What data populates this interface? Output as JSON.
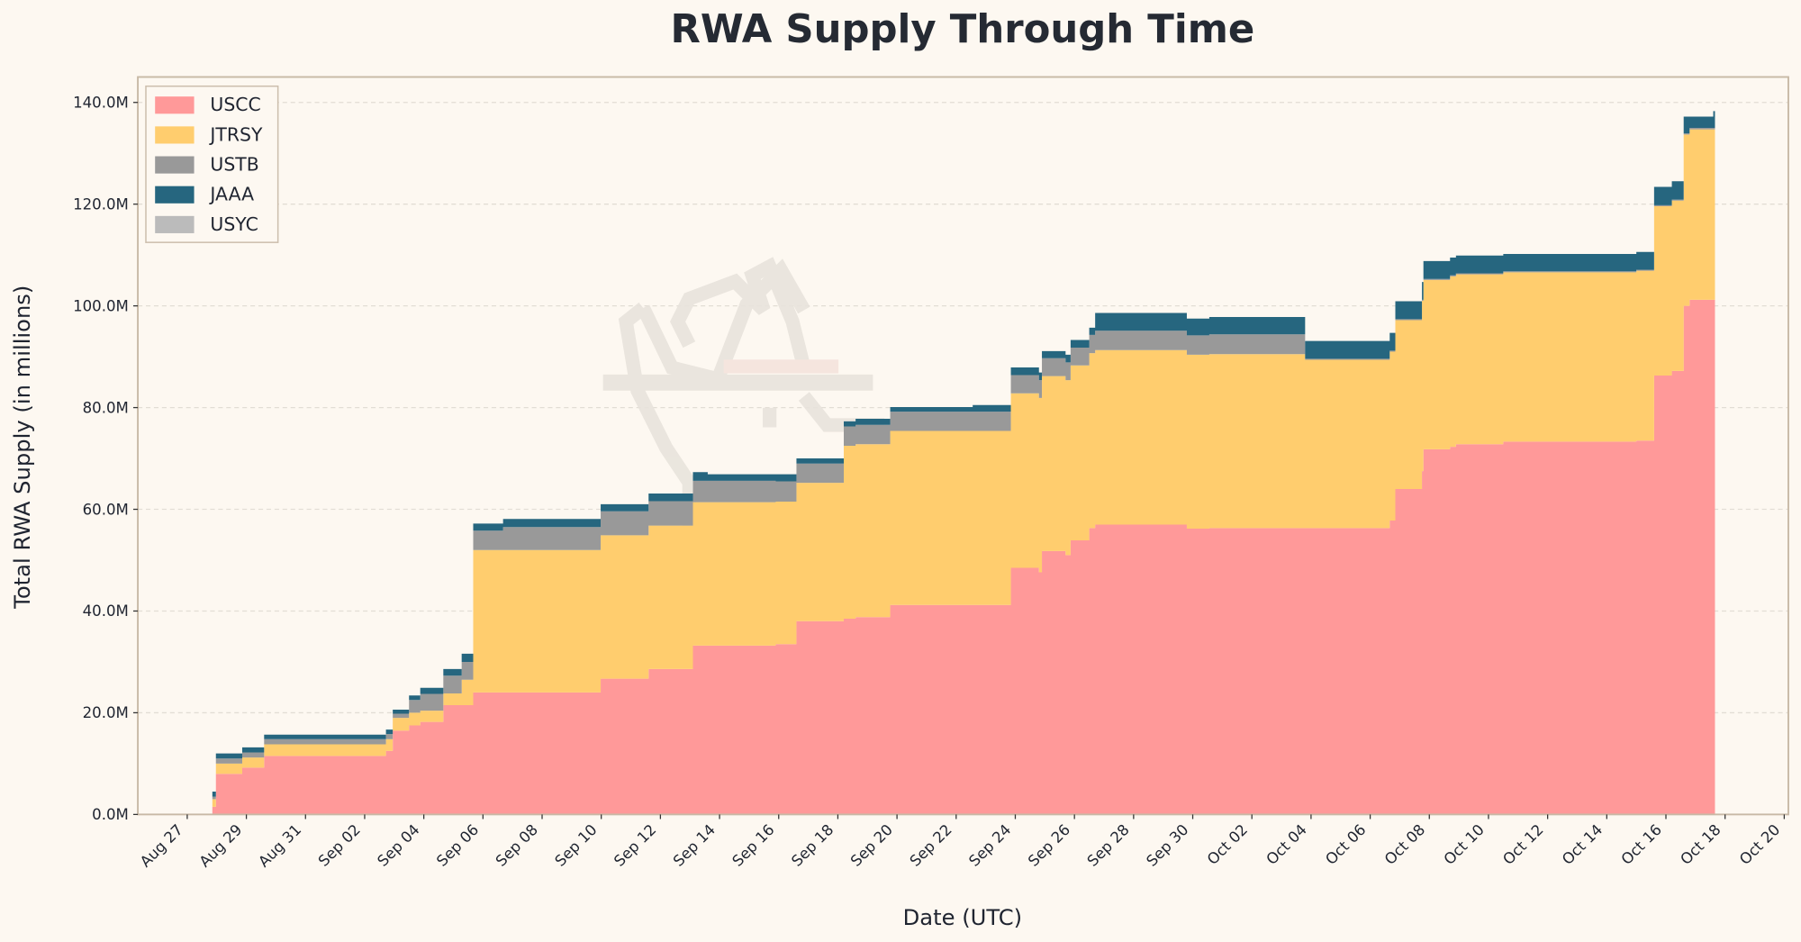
{
  "chart_data": {
    "type": "area",
    "stacked": true,
    "step": "post",
    "title": "RWA Supply Through Time",
    "xlabel": "Date (UTC)",
    "ylabel": "Total RWA Supply (in millions)",
    "x_origin_date": "Aug 27",
    "x_units": "days since Aug 27",
    "xlim": [
      -1.67,
      54.14
    ],
    "ylim": [
      0,
      145
    ],
    "grid": "horizontal dashed",
    "legend_position": "top-left",
    "xticks": [
      "Aug 27",
      "Aug 29",
      "Aug 31",
      "Sep 02",
      "Sep 04",
      "Sep 06",
      "Sep 08",
      "Sep 10",
      "Sep 12",
      "Sep 14",
      "Sep 16",
      "Sep 18",
      "Sep 20",
      "Sep 22",
      "Sep 24",
      "Sep 26",
      "Sep 28",
      "Sep 30",
      "Oct 02",
      "Oct 04",
      "Oct 06",
      "Oct 08",
      "Oct 10",
      "Oct 12",
      "Oct 14",
      "Oct 16",
      "Oct 18",
      "Oct 20"
    ],
    "yticks": [
      0,
      20,
      40,
      60,
      80,
      100,
      120,
      140
    ],
    "ytick_labels": [
      "0.0M",
      "20.0M",
      "40.0M",
      "60.0M",
      "80.0M",
      "100.0M",
      "120.0M",
      "140.0M"
    ],
    "x": [
      0.85,
      0.97,
      1.86,
      2.6,
      6.72,
      6.95,
      7.5,
      7.88,
      8.66,
      9.28,
      9.67,
      10.68,
      13.98,
      15.6,
      17.1,
      17.6,
      19.9,
      20.6,
      22.2,
      22.6,
      23.77,
      26.56,
      27.85,
      28.8,
      28.9,
      29.7,
      29.87,
      30.5,
      30.7,
      33.8,
      34.56,
      37.8,
      40.66,
      40.85,
      41.75,
      41.8,
      42.7,
      42.9,
      44.5,
      49.0,
      49.6,
      50.2,
      50.6,
      50.8,
      51.6
    ],
    "series": [
      {
        "name": "USCC",
        "color": "#ff9999",
        "values": [
          1.5,
          8,
          9.2,
          11.5,
          12.5,
          16.5,
          17.5,
          18.2,
          21.5,
          21.5,
          24,
          24,
          26.7,
          28.6,
          33.2,
          33.2,
          33.5,
          38,
          38.5,
          38.8,
          41.2,
          41.2,
          48.5,
          47.6,
          51.8,
          51.0,
          53.9,
          56.3,
          57,
          56.2,
          56.3,
          56.3,
          57.8,
          64,
          67.5,
          71.8,
          72.3,
          72.8,
          73.3,
          73.5,
          86.3,
          87.2,
          100,
          101.2,
          101.2
        ]
      },
      {
        "name": "JTRSY",
        "color": "#ffcd6e",
        "values": [
          1.5,
          2,
          2,
          2.3,
          2.3,
          2.5,
          2.5,
          2.2,
          2.3,
          5,
          28,
          28,
          28.2,
          28.2,
          28.2,
          28.2,
          28,
          27.2,
          34,
          34,
          34.2,
          34.2,
          34.3,
          34.3,
          34.4,
          34.4,
          34.4,
          34.4,
          34.3,
          34.2,
          34.2,
          33.1,
          33.2,
          33.2,
          33.5,
          33.3,
          33.5,
          33.4,
          33.3,
          33.4,
          33.3,
          33.5,
          33.7,
          33.5,
          33.5
        ]
      },
      {
        "name": "USTB",
        "color": "#999999",
        "values": [
          0.5,
          1,
          1,
          1,
          1,
          0.8,
          2.5,
          3.3,
          3.5,
          3.5,
          3.8,
          4.5,
          4.7,
          4.8,
          4.2,
          4.2,
          4,
          3.8,
          3.8,
          3.8,
          3.8,
          3.8,
          3.6,
          3.5,
          3.5,
          3.5,
          3.5,
          3.6,
          3.8,
          3.8,
          3.9,
          0.2,
          0.2,
          0.2,
          0.2,
          0.2,
          0.2,
          0.2,
          0.2,
          0.2,
          0.2,
          0.2,
          0.2,
          0.3,
          0.3
        ]
      },
      {
        "name": "JAAA",
        "color": "#26667f",
        "values": [
          1,
          1,
          1,
          0.9,
          0.9,
          0.8,
          0.9,
          1.2,
          1.3,
          1.6,
          1.4,
          1.6,
          1.4,
          1.5,
          1.7,
          1.3,
          1.4,
          1.0,
          1.0,
          1.2,
          0.9,
          1.3,
          1.5,
          1.5,
          1.4,
          1.5,
          1.5,
          1.4,
          3.5,
          3.3,
          3.4,
          3.5,
          3.5,
          3.5,
          3.5,
          3.5,
          3.5,
          3.5,
          3.4,
          3.5,
          3.6,
          3.6,
          3.3,
          2.2,
          3.3
        ]
      },
      {
        "name": "USYC",
        "color": "#bbbbbb",
        "values": [
          0,
          0,
          0,
          0,
          0,
          0,
          0,
          0,
          0,
          0,
          0,
          0,
          0,
          0,
          0,
          0,
          0,
          0,
          0,
          0,
          0,
          0,
          0,
          0,
          0,
          0,
          0,
          0,
          0,
          0,
          0,
          0,
          0,
          0,
          0,
          0,
          0,
          0,
          0,
          0,
          0,
          0,
          0,
          0,
          0
        ]
      }
    ]
  }
}
